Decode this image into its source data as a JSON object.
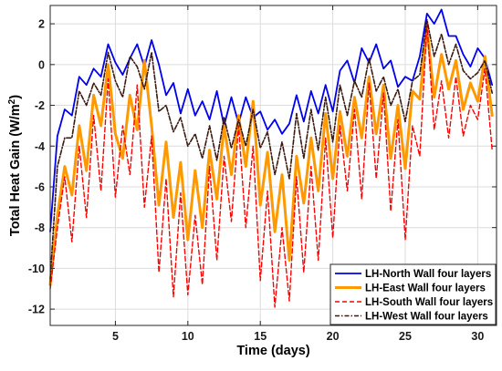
{
  "chart_data": {
    "type": "line",
    "xlabel": "Time (days)",
    "ylabel": {
      "main": "Total Heat Gain (W/m",
      "sup": "2",
      "end": ")"
    },
    "xlim": [
      0.5,
      31.3
    ],
    "ylim": [
      -12.8,
      2.9
    ],
    "xticks": [
      5,
      10,
      15,
      20,
      25,
      30
    ],
    "yticks": [
      2,
      0,
      -2,
      -4,
      -6,
      -8,
      -10,
      -12
    ],
    "grid": true,
    "legend_position": "bottom-right",
    "series": [
      {
        "name": "LH-North Wall four layers",
        "color": "#0000ee",
        "dash": "",
        "width": 1.8,
        "x": [
          0.5,
          1.0,
          1.5,
          2.0,
          2.5,
          3.0,
          3.5,
          4.0,
          4.5,
          5.0,
          5.5,
          6.0,
          6.5,
          7.0,
          7.5,
          8.0,
          8.5,
          9.0,
          9.5,
          10.0,
          10.5,
          11.0,
          11.5,
          12.0,
          12.5,
          13.0,
          13.5,
          14.0,
          14.5,
          15.0,
          15.5,
          16.0,
          16.5,
          17.0,
          17.5,
          18.0,
          18.5,
          19.0,
          19.5,
          20.0,
          20.5,
          21.0,
          21.5,
          22.0,
          22.5,
          23.0,
          23.5,
          24.0,
          24.5,
          25.0,
          25.5,
          26.0,
          26.5,
          27.0,
          27.5,
          28.0,
          28.5,
          29.0,
          29.5,
          30.0,
          30.5,
          31.0
        ],
        "y": [
          -8.2,
          -3.5,
          -2.2,
          -2.5,
          -0.6,
          -1.0,
          -0.2,
          -0.6,
          1.0,
          0.1,
          -0.5,
          0.3,
          1.0,
          -0.1,
          1.2,
          0.0,
          -1.5,
          -0.9,
          -2.4,
          -1.2,
          -2.5,
          -1.8,
          -2.7,
          -1.3,
          -3.0,
          -1.6,
          -2.9,
          -1.6,
          -2.6,
          -2.3,
          -3.2,
          -2.7,
          -3.4,
          -2.9,
          -1.5,
          -2.8,
          -1.3,
          -2.4,
          -1.0,
          -2.3,
          -0.3,
          0.2,
          -0.9,
          0.8,
          0.1,
          1.0,
          -0.2,
          0.2,
          -1.1,
          -0.6,
          -0.8,
          0.4,
          2.5,
          2.0,
          2.7,
          1.4,
          1.4,
          0.5,
          -0.1,
          0.8,
          0.3,
          -1.0
        ]
      },
      {
        "name": "LH-East Wall four layers",
        "color": "#ff9900",
        "dash": "",
        "width": 3.0,
        "x": [
          0.5,
          1.0,
          1.5,
          2.0,
          2.5,
          3.0,
          3.5,
          4.0,
          4.5,
          5.0,
          5.5,
          6.0,
          6.5,
          7.0,
          7.5,
          8.0,
          8.5,
          9.0,
          9.5,
          10.0,
          10.5,
          11.0,
          11.5,
          12.0,
          12.5,
          13.0,
          13.5,
          14.0,
          14.5,
          15.0,
          15.5,
          16.0,
          16.5,
          17.0,
          17.5,
          18.0,
          18.5,
          19.0,
          19.5,
          20.0,
          20.5,
          21.0,
          21.5,
          22.0,
          22.5,
          23.0,
          23.5,
          24.0,
          24.5,
          25.0,
          25.5,
          26.0,
          26.5,
          27.0,
          27.5,
          28.0,
          28.5,
          29.0,
          29.5,
          30.0,
          30.5,
          31.0
        ],
        "y": [
          -10.8,
          -7.4,
          -5.0,
          -6.4,
          -3.0,
          -5.2,
          -1.5,
          -3.0,
          0.0,
          -3.4,
          -4.6,
          -1.5,
          -3.2,
          0.2,
          -3.0,
          -6.9,
          -3.8,
          -7.5,
          -4.8,
          -8.6,
          -5.2,
          -8.0,
          -4.2,
          -6.6,
          -3.0,
          -5.4,
          -2.5,
          -5.0,
          -1.8,
          -6.9,
          -4.3,
          -8.2,
          -5.4,
          -9.6,
          -4.5,
          -6.8,
          -3.6,
          -6.2,
          -2.4,
          -5.6,
          -2.3,
          -4.5,
          -1.6,
          -3.6,
          -0.6,
          -3.4,
          -1.0,
          -4.6,
          -2.0,
          -5.1,
          -1.3,
          -1.7,
          1.8,
          -1.6,
          0.5,
          -1.2,
          0.2,
          -2.2,
          -0.9,
          -1.8,
          0.4,
          -2.5
        ]
      },
      {
        "name": "LH-South Wall four layers",
        "color": "#ff0000",
        "dash": "5,3",
        "width": 1.4,
        "x": [
          0.5,
          1.0,
          1.5,
          2.0,
          2.5,
          3.0,
          3.5,
          4.0,
          4.5,
          5.0,
          5.5,
          6.0,
          6.5,
          7.0,
          7.5,
          8.0,
          8.5,
          9.0,
          9.5,
          10.0,
          10.5,
          11.0,
          11.5,
          12.0,
          12.5,
          13.0,
          13.5,
          14.0,
          14.5,
          15.0,
          15.5,
          16.0,
          16.5,
          17.0,
          17.5,
          18.0,
          18.5,
          19.0,
          19.5,
          20.0,
          20.5,
          21.0,
          21.5,
          22.0,
          22.5,
          23.0,
          23.5,
          24.0,
          24.5,
          25.0,
          25.5,
          26.0,
          26.5,
          27.0,
          27.5,
          28.0,
          28.5,
          29.0,
          29.5,
          30.0,
          30.5,
          31.0
        ],
        "y": [
          -11.0,
          -8.0,
          -5.5,
          -8.7,
          -4.0,
          -7.5,
          -2.5,
          -6.2,
          -0.7,
          -6.5,
          -3.0,
          -5.4,
          -1.0,
          -7.0,
          -3.5,
          -10.2,
          -5.6,
          -11.4,
          -6.3,
          -11.3,
          -7.4,
          -10.8,
          -5.0,
          -9.6,
          -4.5,
          -7.7,
          -3.0,
          -8.0,
          -4.0,
          -10.6,
          -6.2,
          -11.9,
          -8.0,
          -11.6,
          -5.5,
          -10.2,
          -5.0,
          -9.6,
          -3.6,
          -8.5,
          -3.0,
          -6.2,
          -2.2,
          -6.6,
          -0.9,
          -5.6,
          -1.4,
          -7.2,
          -2.7,
          -8.6,
          -3.0,
          -4.5,
          2.0,
          -3.2,
          -0.8,
          -3.6,
          -0.6,
          -3.5,
          -2.0,
          -2.7,
          -0.2,
          -4.2
        ]
      },
      {
        "name": "LH-West Wall four layers",
        "color": "#3a1a10",
        "dash": "5,2,1.5,2",
        "width": 1.6,
        "x": [
          0.5,
          1.0,
          1.5,
          2.0,
          2.5,
          3.0,
          3.5,
          4.0,
          4.5,
          5.0,
          5.5,
          6.0,
          6.5,
          7.0,
          7.5,
          8.0,
          8.5,
          9.0,
          9.5,
          10.0,
          10.5,
          11.0,
          11.5,
          12.0,
          12.5,
          13.0,
          13.5,
          14.0,
          14.5,
          15.0,
          15.5,
          16.0,
          16.5,
          17.0,
          17.5,
          18.0,
          18.5,
          19.0,
          19.5,
          20.0,
          20.5,
          21.0,
          21.5,
          22.0,
          22.5,
          23.0,
          23.5,
          24.0,
          24.5,
          25.0,
          25.5,
          26.0,
          26.5,
          27.0,
          27.5,
          28.0,
          28.5,
          29.0,
          29.5,
          30.0,
          30.5,
          31.0
        ],
        "y": [
          -10.5,
          -5.0,
          -3.6,
          -3.6,
          -1.3,
          -2.0,
          -0.9,
          -1.5,
          0.6,
          -0.8,
          -1.6,
          0.4,
          -0.1,
          -1.2,
          0.6,
          -2.3,
          -2.0,
          -3.3,
          -2.6,
          -4.0,
          -3.4,
          -4.6,
          -3.0,
          -4.7,
          -2.6,
          -4.1,
          -2.7,
          -4.0,
          -2.2,
          -4.1,
          -3.3,
          -5.4,
          -3.8,
          -5.6,
          -2.4,
          -4.6,
          -2.2,
          -4.2,
          -1.6,
          -3.8,
          -1.0,
          -2.5,
          -0.8,
          -1.6,
          0.3,
          -1.3,
          -0.6,
          -2.0,
          -1.2,
          -2.8,
          -0.8,
          -0.5,
          2.2,
          0.4,
          1.5,
          0.0,
          1.0,
          -0.3,
          -0.7,
          -0.4,
          0.2,
          -1.4
        ]
      }
    ]
  }
}
